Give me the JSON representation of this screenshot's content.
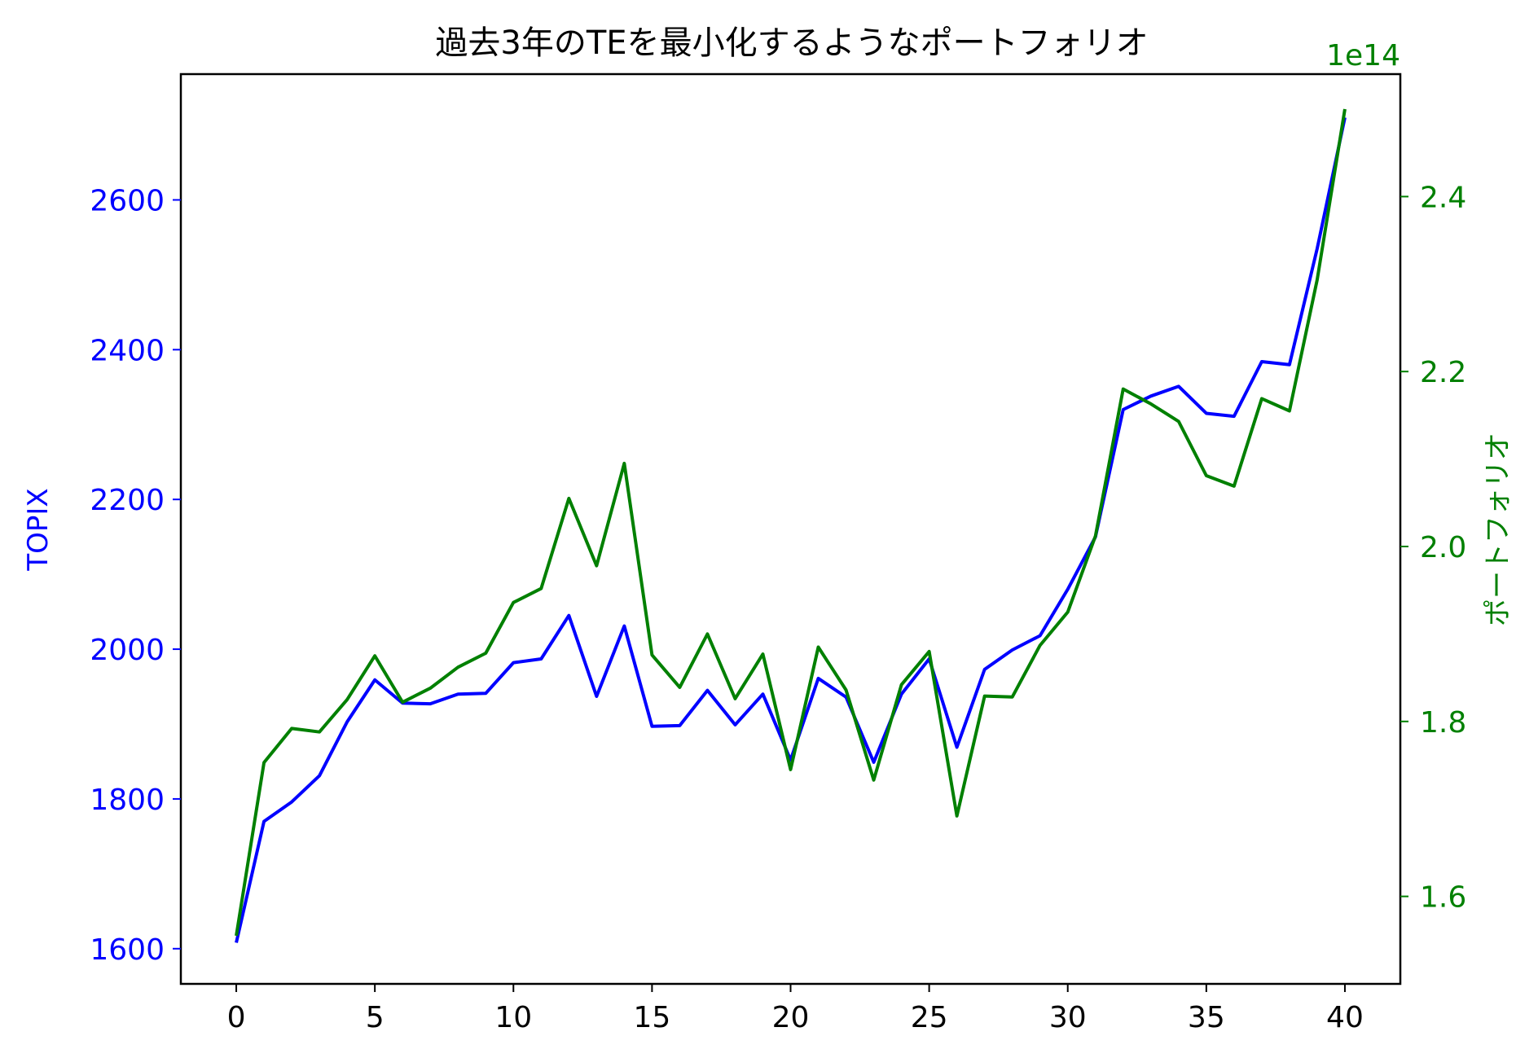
{
  "chart_data": {
    "type": "line",
    "title": "過去3年のTEを最小化するようなポートフォリオ",
    "x": [
      0,
      1,
      2,
      3,
      4,
      5,
      6,
      7,
      8,
      9,
      10,
      11,
      12,
      13,
      14,
      15,
      16,
      17,
      18,
      19,
      20,
      21,
      22,
      23,
      24,
      25,
      26,
      27,
      28,
      29,
      30,
      31,
      32,
      33,
      34,
      35,
      36,
      37,
      38,
      39,
      40
    ],
    "x_ticks": [
      0,
      5,
      10,
      15,
      20,
      25,
      30,
      35,
      40
    ],
    "xlim": [
      -2,
      42
    ],
    "left_axis": {
      "label": "TOPIX",
      "color": "#0000ff",
      "ylim": [
        1553,
        2768
      ],
      "ticks": [
        1600,
        1800,
        2000,
        2200,
        2400,
        2600
      ]
    },
    "right_axis": {
      "label": "ポートフォリオ",
      "color": "#008000",
      "offset_text": "1e14",
      "ylim": [
        1.5,
        2.54
      ],
      "ticks": [
        1.6,
        1.8,
        2.0,
        2.2,
        2.4
      ]
    },
    "series": [
      {
        "name": "TOPIX",
        "axis": "left",
        "color": "#0000ff",
        "values": [
          1608,
          1770,
          1796,
          1831,
          1903,
          1959,
          1928,
          1927,
          1940,
          1941,
          1982,
          1987,
          2045,
          1937,
          2031,
          1897,
          1898,
          1945,
          1899,
          1940,
          1852,
          1961,
          1936,
          1849,
          1940,
          1987,
          1869,
          1973,
          1999,
          2018,
          2080,
          2150,
          2320,
          2338,
          2351,
          2315,
          2311,
          2384,
          2380,
          2535,
          2710
        ]
      },
      {
        "name": "ポートフォリオ",
        "axis": "right",
        "color": "#008000",
        "values": [
          1.555,
          1.753,
          1.792,
          1.788,
          1.825,
          1.875,
          1.822,
          1.838,
          1.862,
          1.878,
          1.936,
          1.952,
          2.055,
          1.978,
          2.095,
          1.876,
          1.839,
          1.9,
          1.826,
          1.877,
          1.745,
          1.885,
          1.836,
          1.733,
          1.842,
          1.88,
          1.692,
          1.829,
          1.828,
          1.887,
          1.925,
          2.012,
          2.18,
          2.163,
          2.143,
          2.081,
          2.069,
          2.169,
          2.155,
          2.305,
          2.5
        ]
      }
    ],
    "grid": false,
    "legend": "none"
  }
}
